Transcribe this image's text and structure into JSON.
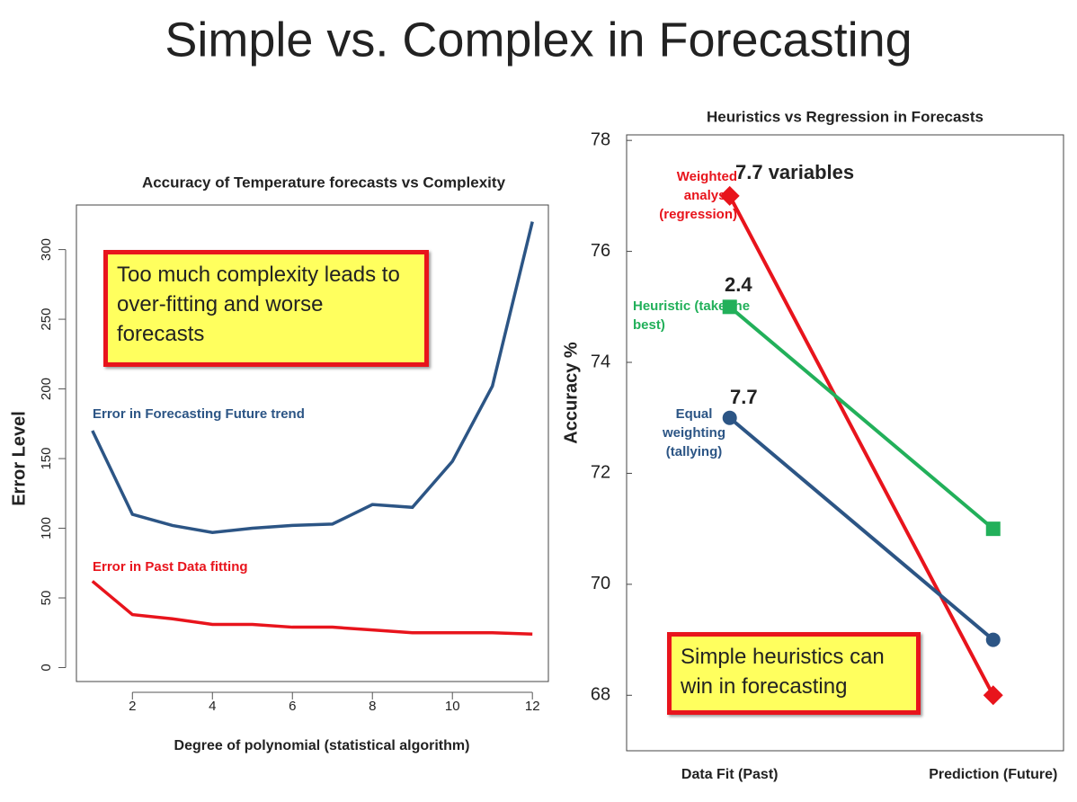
{
  "title": "Simple vs. Complex in Forecasting",
  "chart_data": [
    {
      "type": "line",
      "title": "Accuracy of Temperature forecasts vs Complexity",
      "x_label": "Degree of polynomial (statistical algorithm)",
      "y_label": "Error Level",
      "x": [
        1,
        2,
        3,
        4,
        5,
        6,
        7,
        8,
        9,
        10,
        11,
        12
      ],
      "series": [
        {
          "name": "Error in Forecasting Future trend",
          "color": "#2c5585",
          "values": [
            170,
            110,
            102,
            97,
            100,
            102,
            103,
            117,
            115,
            148,
            202,
            320
          ]
        },
        {
          "name": "Error in Past Data fitting",
          "color": "#e8141c",
          "values": [
            62,
            38,
            35,
            31,
            31,
            29,
            29,
            27,
            25,
            25,
            25,
            24
          ]
        }
      ],
      "xlim": [
        0.6,
        12.4
      ],
      "xticks": [
        2,
        4,
        6,
        8,
        10,
        12
      ],
      "ylim": [
        -10,
        332
      ],
      "yticks": [
        0,
        50,
        100,
        150,
        200,
        250,
        300
      ],
      "annotation": "Too much complexity leads to over-fitting and worse forecasts"
    },
    {
      "type": "line",
      "title": "Heuristics vs Regression in Forecasts",
      "y_label": "Accuracy %",
      "categories": [
        "Data Fit (Past)",
        "Prediction (Future)"
      ],
      "series": [
        {
          "name": "Weighted analysis (regression)",
          "color": "#e8141c",
          "marker": "diamond",
          "annotation": "7.7 variables",
          "values": [
            77,
            68
          ]
        },
        {
          "name": "Heuristic (take the best)",
          "color": "#22b05a",
          "marker": "square",
          "annotation": "2.4",
          "values": [
            75,
            71
          ]
        },
        {
          "name": "Equal weighting (tallying)",
          "color": "#2c5585",
          "marker": "circle",
          "annotation": "7.7",
          "values": [
            73,
            69
          ]
        }
      ],
      "ylim": [
        67,
        78.1
      ],
      "yticks": [
        68,
        70,
        72,
        74,
        76,
        78
      ],
      "annotation": "Simple heuristics can win in forecasting"
    }
  ]
}
